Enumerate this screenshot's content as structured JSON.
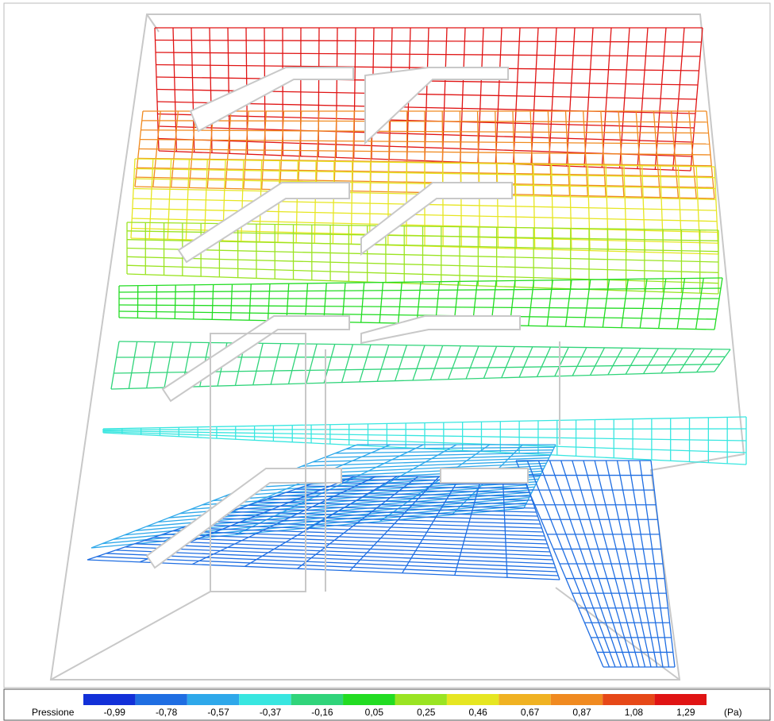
{
  "legend": {
    "title": "Pressione",
    "labels": [
      "-0,99",
      "-0,78",
      "-0,57",
      "-0,37",
      "-0,16",
      "0,05",
      "0,25",
      "0,46",
      "0,67",
      "0,87",
      "1,08",
      "1,29"
    ],
    "colors": [
      "#1230d8",
      "#1f6ee2",
      "#2ea8ea",
      "#38e6e0",
      "#30d47a",
      "#22dc22",
      "#9ae422",
      "#e6e622",
      "#f0b222",
      "#f08a20",
      "#e64818",
      "#e01414"
    ],
    "unit": "(Pa)"
  }
}
